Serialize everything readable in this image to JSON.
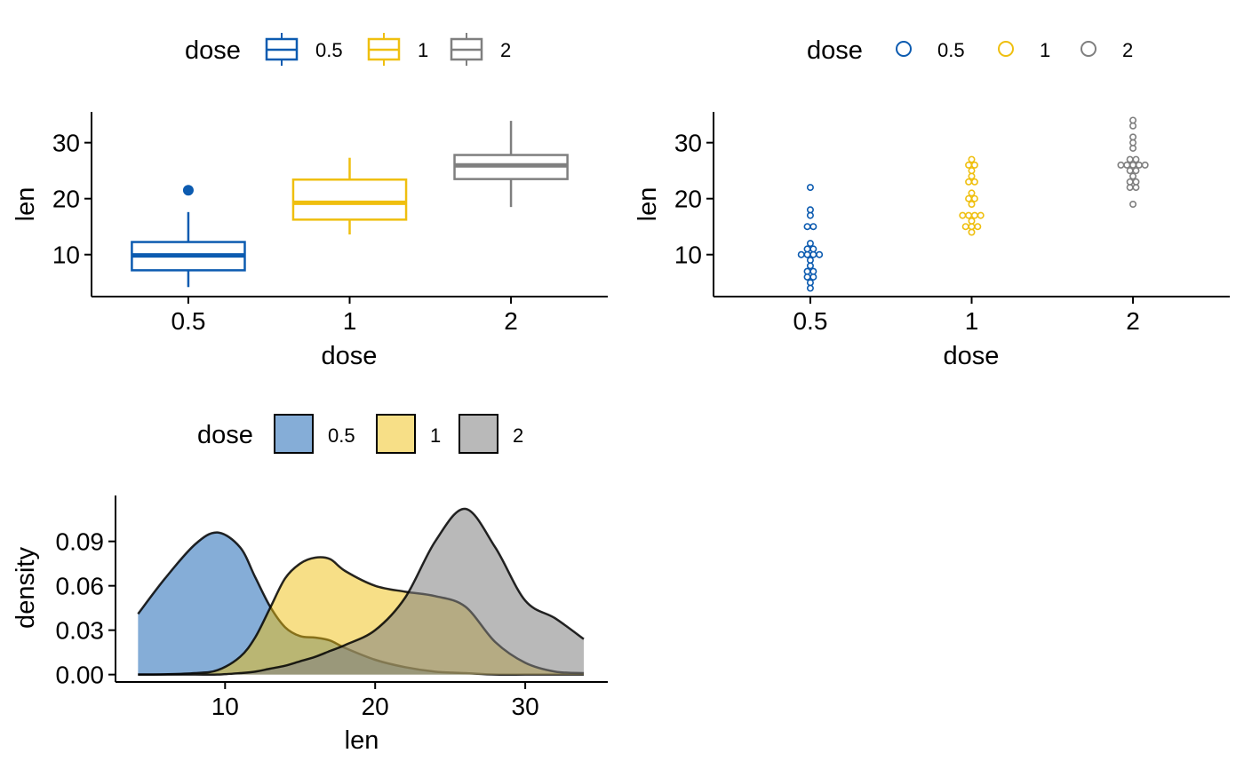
{
  "palette": {
    "0.5": "#0C5BB0",
    "1": "#EFBF0F",
    "2": "#7F7F7F",
    "axis": "#000000"
  },
  "chart_data": [
    {
      "id": "boxplot",
      "type": "box",
      "title": "",
      "legend": {
        "title": "dose",
        "labels": [
          "0.5",
          "1",
          "2"
        ],
        "position": "top"
      },
      "categories": [
        "0.5",
        "1",
        "2"
      ],
      "xlabel": "dose",
      "ylabel": "len",
      "ylim": [
        2.5,
        35.5
      ],
      "yticks": [
        10,
        20,
        30
      ],
      "boxes": [
        {
          "category": "0.5",
          "min": 4.2,
          "q1": 7.2,
          "median": 9.85,
          "q3": 12.25,
          "max": 17.6,
          "outliers": [
            21.5
          ]
        },
        {
          "category": "1",
          "min": 13.6,
          "q1": 16.25,
          "median": 19.25,
          "q3": 23.4,
          "max": 27.3,
          "outliers": []
        },
        {
          "category": "2",
          "min": 18.5,
          "q1": 23.5,
          "median": 25.95,
          "q3": 27.8,
          "max": 33.9,
          "outliers": []
        }
      ]
    },
    {
      "id": "dotplot",
      "type": "dot",
      "title": "",
      "legend": {
        "title": "dose",
        "labels": [
          "0.5",
          "1",
          "2"
        ],
        "position": "top"
      },
      "categories": [
        "0.5",
        "1",
        "2"
      ],
      "xlabel": "dose",
      "ylabel": "len",
      "ylim": [
        2.5,
        35.5
      ],
      "yticks": [
        10,
        20,
        30
      ],
      "groups": [
        {
          "category": "0.5",
          "values": [
            4.2,
            11.5,
            7.3,
            5.8,
            6.4,
            10,
            11.2,
            11.2,
            5.2,
            7,
            15.2,
            21.5,
            17.6,
            9.7,
            14.5,
            10,
            8.2,
            9.4,
            16.5,
            9.7
          ]
        },
        {
          "category": "1",
          "values": [
            16.5,
            16.5,
            15.2,
            17.3,
            22.5,
            17.3,
            13.6,
            14.5,
            18.8,
            15.5,
            19.7,
            23.3,
            23.6,
            26.4,
            20,
            25.2,
            25.8,
            21.2,
            14.5,
            27.3
          ]
        },
        {
          "category": "2",
          "values": [
            23.6,
            18.5,
            33.9,
            25.5,
            26.4,
            32.5,
            26.7,
            21.5,
            23.3,
            29.5,
            25.5,
            26.4,
            22.4,
            24.5,
            24.8,
            30.9,
            26.4,
            27.3,
            29.4,
            23
          ]
        }
      ]
    },
    {
      "id": "density",
      "type": "area",
      "title": "",
      "legend": {
        "title": "dose",
        "labels": [
          "0.5",
          "1",
          "2"
        ],
        "position": "top"
      },
      "xlabel": "len",
      "ylabel": "density",
      "xlim": [
        2.7,
        35.5
      ],
      "ylim": [
        -0.005,
        0.121
      ],
      "xticks": [
        10,
        20,
        30
      ],
      "yticks": [
        0.0,
        0.03,
        0.06,
        0.09
      ],
      "ytick_labels": [
        "0.00",
        "0.03",
        "0.06",
        "0.09"
      ],
      "x": [
        4.2,
        6,
        8,
        9.5,
        11,
        12,
        13,
        14,
        15,
        16,
        17,
        18,
        20,
        22,
        24,
        26,
        28,
        30,
        32,
        33.9
      ],
      "series": [
        {
          "name": "0.5",
          "values": [
            0.041,
            0.065,
            0.088,
            0.096,
            0.086,
            0.066,
            0.046,
            0.032,
            0.026,
            0.025,
            0.023,
            0.018,
            0.01,
            0.005,
            0.002,
            0.001,
            0.0,
            0.0,
            0.0,
            0.0
          ]
        },
        {
          "name": "1",
          "values": [
            0.0,
            0.0002,
            0.001,
            0.003,
            0.012,
            0.025,
            0.045,
            0.065,
            0.075,
            0.079,
            0.078,
            0.07,
            0.06,
            0.056,
            0.053,
            0.046,
            0.022,
            0.008,
            0.002,
            0.001
          ]
        },
        {
          "name": "2",
          "values": [
            0.0,
            0.0,
            0.0,
            0.0,
            0.001,
            0.002,
            0.004,
            0.006,
            0.009,
            0.012,
            0.016,
            0.02,
            0.03,
            0.052,
            0.09,
            0.112,
            0.086,
            0.05,
            0.038,
            0.024
          ]
        }
      ]
    }
  ]
}
